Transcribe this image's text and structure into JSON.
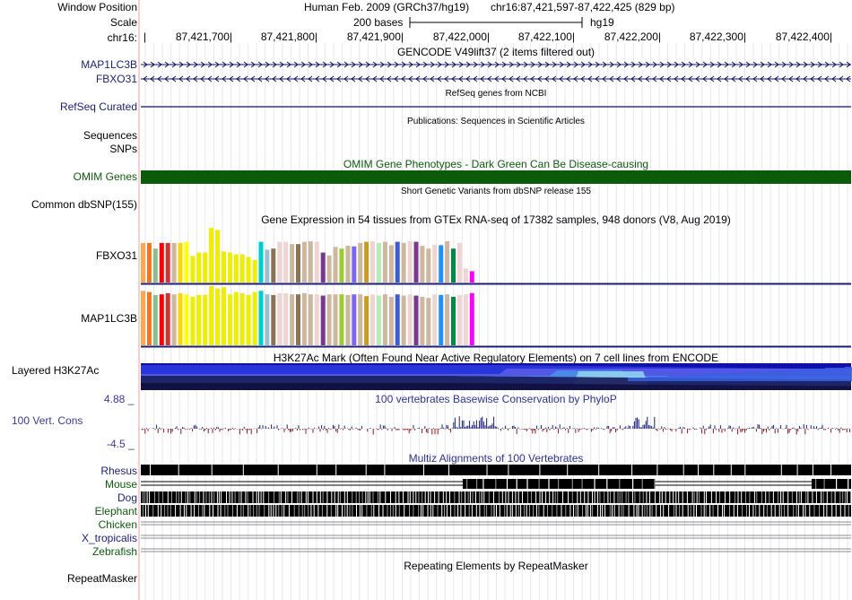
{
  "header": {
    "window_position_label": "Window Position",
    "scale_label": "Scale",
    "chrom_label": "chr16:",
    "assembly": "Human Feb. 2009 (GRCh37/hg19)",
    "position": "chr16:87,421,597-87,422,425 (829 bp)",
    "scale_text": "200 bases",
    "scale_db": "hg19",
    "ticks": [
      "87,421,700",
      "87,421,800",
      "87,421,900",
      "87,422,000",
      "87,422,100",
      "87,422,200",
      "87,422,300",
      "87,422,400"
    ]
  },
  "tracks": {
    "gencode": {
      "title": "GENCODE V49lift37 (2 items filtered out)",
      "genes": [
        {
          "name": "MAP1LC3B",
          "strand": "+"
        },
        {
          "name": "FBXO31",
          "strand": "-"
        }
      ]
    },
    "refseq": {
      "title": "RefSeq genes from NCBI",
      "label": "RefSeq Curated"
    },
    "publications": {
      "title": "Publications: Sequences in Scientific Articles",
      "labels": [
        "Sequences",
        "SNPs"
      ]
    },
    "omim": {
      "title": "OMIM Gene Phenotypes - Dark Green Can Be Disease-causing",
      "label": "OMIM Genes",
      "color": "#0b5b0b"
    },
    "dbsnp": {
      "title": "Short Genetic Variants from dbSNP release 155",
      "label": "Common dbSNP(155)"
    },
    "gtex": {
      "title": "Gene Expression in 54 tissues from GTEx RNA-seq of 17382 samples, 948 donors (V8, Aug 2019)",
      "genes": [
        {
          "name": "FBXO31",
          "values": [
            0.7,
            0.7,
            0.6,
            0.7,
            0.7,
            0.7,
            0.7,
            0.72,
            0.47,
            0.53,
            0.53,
            0.97,
            0.93,
            0.55,
            0.53,
            0.5,
            0.5,
            0.45,
            0.4,
            0.72,
            0.58,
            0.6,
            0.72,
            0.72,
            0.68,
            0.68,
            0.72,
            0.73,
            0.72,
            0.53,
            0.48,
            0.63,
            0.6,
            0.65,
            0.64,
            0.7,
            0.72,
            0.73,
            0.7,
            0.72,
            0.66,
            0.72,
            0.7,
            0.73,
            0.72,
            0.65,
            0.6,
            0.67,
            0.66,
            0.73,
            0.6,
            0.7,
            0.25,
            0.2
          ]
        },
        {
          "name": "MAP1LC3B",
          "values": [
            0.92,
            0.9,
            0.85,
            0.86,
            0.88,
            0.86,
            0.88,
            0.86,
            0.82,
            0.85,
            0.85,
            1.0,
            0.96,
            0.98,
            0.86,
            0.9,
            0.88,
            0.85,
            0.9,
            0.92,
            0.86,
            0.85,
            0.88,
            0.88,
            0.86,
            0.86,
            0.88,
            0.86,
            0.86,
            0.84,
            0.86,
            0.86,
            0.86,
            0.85,
            0.86,
            0.86,
            0.83,
            0.86,
            0.84,
            0.86,
            0.82,
            0.86,
            0.84,
            0.86,
            0.84,
            0.82,
            0.8,
            0.86,
            0.85,
            0.86,
            0.82,
            0.85,
            0.86,
            0.88
          ]
        }
      ],
      "colors": [
        "#ffa54f",
        "#ee7621",
        "#8fbc8f",
        "#ff0000",
        "#cd3333",
        "#cdb79e",
        "#ffd700",
        "#ffff00",
        "#eeee00",
        "#eeee00",
        "#eeee00",
        "#eeee00",
        "#eeee00",
        "#eeee00",
        "#eeee00",
        "#eeee00",
        "#eeee00",
        "#eeee00",
        "#eeee00",
        "#00cdcd",
        "#9ac0cd",
        "#8b7355",
        "#eed5d2",
        "#eed5d2",
        "#cdb79e",
        "#8b7355",
        "#cdb79e",
        "#cdb79e",
        "#eed5d2",
        "#7a378b",
        "#cdb79e",
        "#cdb79e",
        "#9acd32",
        "#cdb79e",
        "#7a67ee",
        "#cdb79e",
        "#cd9b1d",
        "#eed5d2",
        "#b4eeb4",
        "#cdb79e",
        "#cdb79e",
        "#3a5fcd",
        "#cdb79e",
        "#eed5d2",
        "#7a378b",
        "#cdb79e",
        "#cdb79e",
        "#eed5d2",
        "#1e90ff",
        "#cdb79e",
        "#008b45",
        "#eed5d2",
        "#eed5d2",
        "#ff00ff"
      ]
    },
    "h3k27ac": {
      "title": "H3K27Ac Mark (Often Found Near Active Regulatory Elements) on 7 cell lines from ENCODE",
      "label": "Layered H3K27Ac"
    },
    "phylop": {
      "title": "100 vertebrates Basewise Conservation by PhyloP",
      "label": "100 Vert. Cons",
      "max": "4.88 _",
      "min": "-4.5 _",
      "pos_color": "#1a1f78",
      "neg_color": "#8b1a1a"
    },
    "multiz": {
      "title": "Multiz Alignments of 100 Vertebrates",
      "species": [
        {
          "name": "Rhesus",
          "color": "#1a1f78"
        },
        {
          "name": "Mouse",
          "color": "#0b5b0b"
        },
        {
          "name": "Dog",
          "color": "#1a1f78"
        },
        {
          "name": "Elephant",
          "color": "#0b5b0b"
        },
        {
          "name": "Chicken",
          "color": "#0b5b0b"
        },
        {
          "name": "X_tropicalis",
          "color": "#1a1f78"
        },
        {
          "name": "Zebrafish",
          "color": "#0b5b0b"
        }
      ]
    },
    "repeatmasker": {
      "title": "Repeating Elements by RepeatMasker",
      "label": "RepeatMasker"
    }
  }
}
